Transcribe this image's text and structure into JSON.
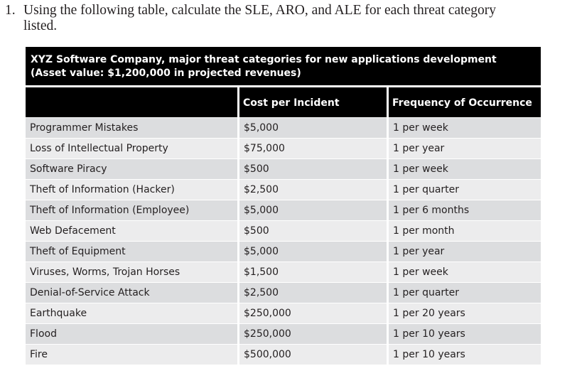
{
  "question": {
    "number": "1.",
    "line1": "Using the following table, calculate the SLE, ARO, and ALE for each threat category",
    "line2": "listed."
  },
  "table": {
    "caption_line1": "XYZ Software Company, major threat categories for new applications development",
    "caption_line2": "(Asset value: $1,200,000 in projected revenues)",
    "headers": [
      "",
      "Cost per Incident",
      "Frequency of Occurrence"
    ],
    "rows": [
      [
        "Programmer Mistakes",
        "$5,000",
        "1 per week"
      ],
      [
        "Loss of Intellectual Property",
        "$75,000",
        "1 per year"
      ],
      [
        "Software Piracy",
        "$500",
        "1 per week"
      ],
      [
        "Theft of Information (Hacker)",
        "$2,500",
        "1 per quarter"
      ],
      [
        "Theft of Information (Employee)",
        "$5,000",
        "1 per 6 months"
      ],
      [
        "Web Defacement",
        "$500",
        "1 per month"
      ],
      [
        "Theft of Equipment",
        "$5,000",
        "1 per year"
      ],
      [
        "Viruses, Worms, Trojan Horses",
        "$1,500",
        "1 per week"
      ],
      [
        "Denial-of-Service Attack",
        "$2,500",
        "1 per quarter"
      ],
      [
        "Earthquake",
        "$250,000",
        "1 per 20 years"
      ],
      [
        "Flood",
        "$250,000",
        "1 per 10 years"
      ],
      [
        "Fire",
        "$500,000",
        "1 per 10 years"
      ]
    ]
  }
}
